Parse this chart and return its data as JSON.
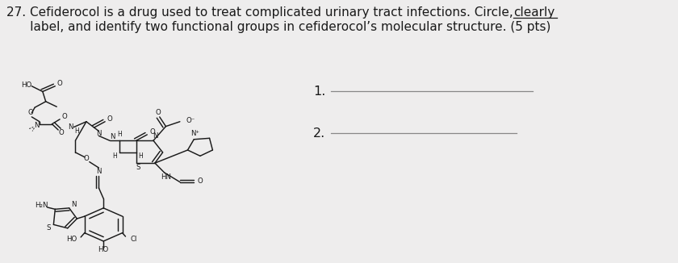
{
  "bg_color": "#eeeded",
  "text_color": "#1a1a1a",
  "line_color": "#888888",
  "font_size_question": 11.0,
  "font_size_answer": 11.5,
  "q_line1a": "27. Cefiderocol is a drug used to treat complicated urinary tract infections. Circle, ",
  "q_line1b": "clearly",
  "q_line2": "      label, and identify two functional groups in cefiderocol’s molecular structure. (5 pts)",
  "ans1_label": "1.",
  "ans2_label": "2."
}
